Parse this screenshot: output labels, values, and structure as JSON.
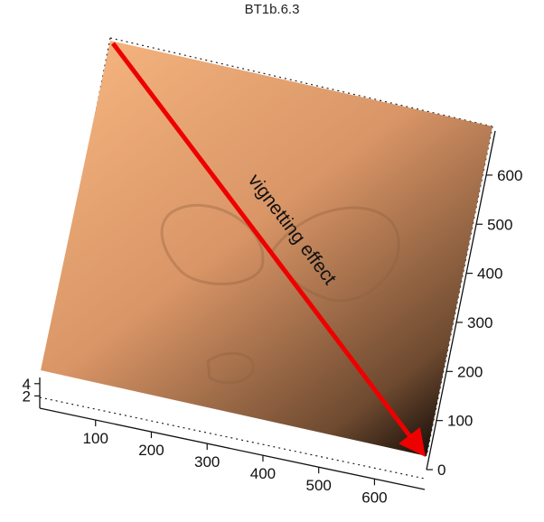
{
  "chart_data": {
    "type": "surface3d",
    "title": "BT1b.6.3",
    "x_ticks": [
      "100",
      "200",
      "300",
      "400",
      "500",
      "600"
    ],
    "y_ticks": [
      "0",
      "100",
      "200",
      "300",
      "400",
      "500",
      "600"
    ],
    "z_ticks": [
      "2",
      "4"
    ],
    "xlim": [
      0,
      690
    ],
    "ylim": [
      0,
      690
    ],
    "zlim": [
      0,
      5
    ],
    "annotation": "vignetting effect",
    "colormap": [
      "#f3b27e",
      "#d99566",
      "#6e4a30",
      "#1a100a"
    ],
    "arrow_color": "#ee0000",
    "grid": true
  }
}
